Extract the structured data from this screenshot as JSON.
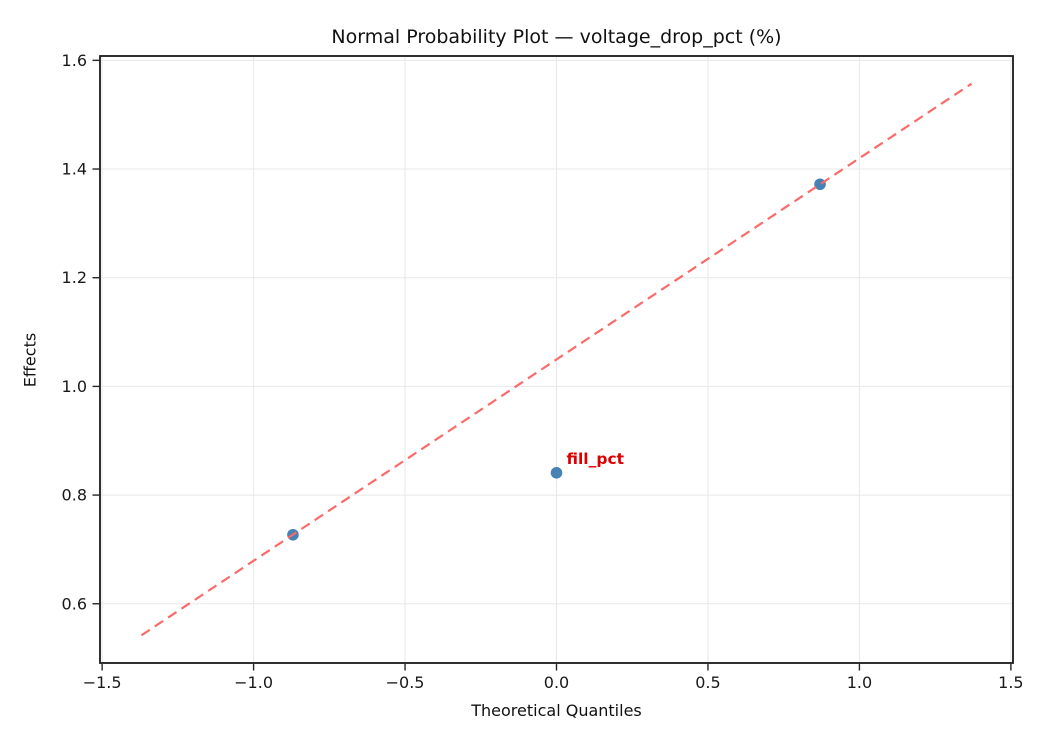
{
  "chart_data": {
    "type": "scatter",
    "title": "Normal Probability Plot — voltage_drop_pct (%)",
    "xlabel": "Theoretical Quantiles",
    "ylabel": "Effects",
    "xlim": [
      -1.507,
      1.507
    ],
    "ylim": [
      0.491,
      1.608
    ],
    "xticks": {
      "values": [
        -1.5,
        -1.0,
        -0.5,
        0.0,
        0.5,
        1.0,
        1.5
      ],
      "labels": [
        "−1.5",
        "−1.0",
        "−0.5",
        "0.0",
        "0.5",
        "1.0",
        "1.5"
      ]
    },
    "yticks": {
      "values": [
        0.6,
        0.8,
        1.0,
        1.2,
        1.4,
        1.6
      ],
      "labels": [
        "0.6",
        "0.8",
        "1.0",
        "1.2",
        "1.4",
        "1.6"
      ]
    },
    "grid": true,
    "legend": false,
    "series": [
      {
        "name": "effects",
        "type": "scatter",
        "color": "#4682b4",
        "marker": "circle",
        "marker_radius": 5.8,
        "points": [
          {
            "x": -0.87,
            "y": 0.727
          },
          {
            "x": 0.0,
            "y": 0.841
          },
          {
            "x": 0.87,
            "y": 1.372
          }
        ]
      },
      {
        "name": "reference-line",
        "type": "line",
        "style": "dashed",
        "color": "#fb6a6a",
        "line_width": 2.2,
        "points": [
          {
            "x": -1.37,
            "y": 0.542
          },
          {
            "x": 1.37,
            "y": 1.557
          }
        ]
      }
    ],
    "annotations": [
      {
        "text": "fill_pct",
        "x": 0.0,
        "y": 0.841,
        "offset_x": 10,
        "offset_y": -9,
        "color": "#dd0000",
        "bold": true,
        "font_size": 15.5
      }
    ]
  },
  "style": {
    "background": "#ffffff",
    "spine_color": "#1a1a1a",
    "grid_color": "#e8e8e8",
    "tick_color": "#262626",
    "tick_label_color": "#191919",
    "tick_font_size": 16,
    "title_font_size": 19,
    "axis_label_font_size": 16
  }
}
